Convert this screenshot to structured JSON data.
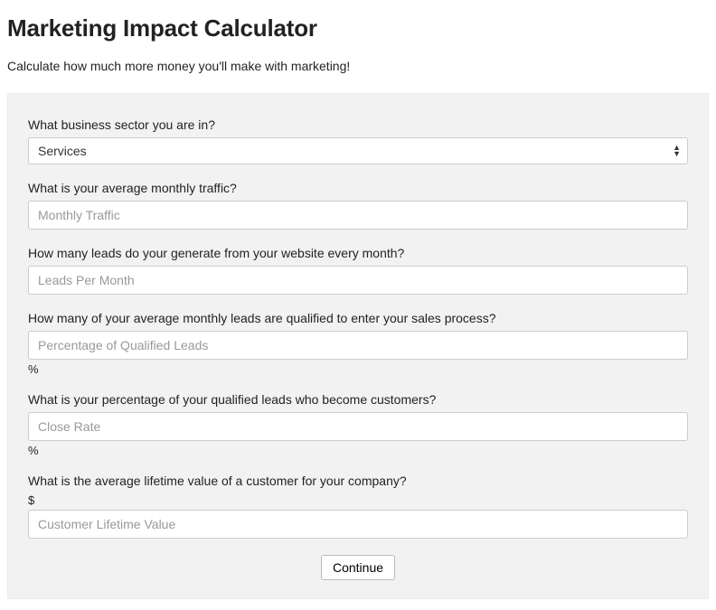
{
  "title": "Marketing Impact Calculator",
  "subtitle": "Calculate how much more money you'll make with marketing!",
  "form": {
    "sector": {
      "label": "What business sector you are in?",
      "selected": "Services"
    },
    "traffic": {
      "label": "What is your average monthly traffic?",
      "placeholder": "Monthly Traffic"
    },
    "leads": {
      "label": "How many leads do your generate from your website every month?",
      "placeholder": "Leads Per Month"
    },
    "qualified": {
      "label": "How many of your average monthly leads are qualified to enter your sales process?",
      "placeholder": "Percentage of Qualified Leads",
      "suffix": "%"
    },
    "close_rate": {
      "label": "What is your percentage of your qualified leads who become customers?",
      "placeholder": "Close Rate",
      "suffix": "%"
    },
    "ltv": {
      "label": "What is the average lifetime value of a customer for your company?",
      "prefix": "$",
      "placeholder": "Customer Lifetime Value"
    },
    "continue_label": "Continue"
  }
}
